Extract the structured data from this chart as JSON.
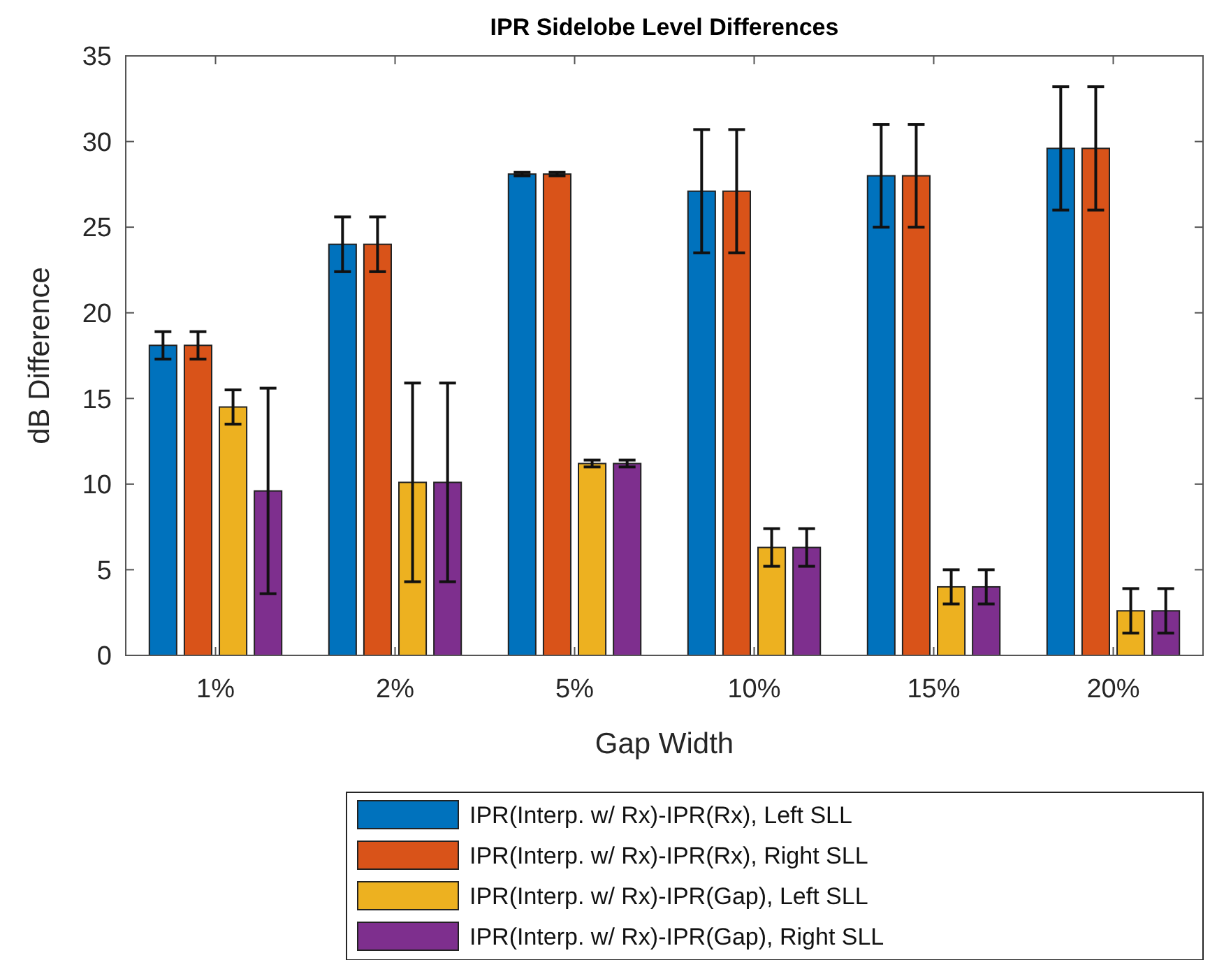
{
  "chart_data": {
    "type": "bar",
    "title": "IPR Sidelobe Level Differences",
    "xlabel": "Gap Width",
    "ylabel": "dB Difference",
    "categories": [
      "1%",
      "2%",
      "5%",
      "10%",
      "15%",
      "20%"
    ],
    "series": [
      {
        "name": "IPR(Interp. w/ Rx)-IPR(Rx), Left SLL",
        "color": "#0072bd",
        "values": [
          18.1,
          24.0,
          28.1,
          27.1,
          28.0,
          29.6
        ],
        "errors": [
          0.8,
          1.6,
          0.1,
          3.6,
          3.0,
          3.6
        ]
      },
      {
        "name": "IPR(Interp. w/ Rx)-IPR(Rx), Right SLL",
        "color": "#d95319",
        "values": [
          18.1,
          24.0,
          28.1,
          27.1,
          28.0,
          29.6
        ],
        "errors": [
          0.8,
          1.6,
          0.1,
          3.6,
          3.0,
          3.6
        ]
      },
      {
        "name": "IPR(Interp. w/ Rx)-IPR(Gap), Left SLL",
        "color": "#edb120",
        "values": [
          14.5,
          10.1,
          11.2,
          6.3,
          4.0,
          2.6
        ],
        "errors": [
          1.0,
          5.8,
          0.2,
          1.1,
          1.0,
          1.3
        ]
      },
      {
        "name": "IPR(Interp. w/ Rx)-IPR(Gap), Right SLL",
        "color": "#7e2f8e",
        "values": [
          9.6,
          10.1,
          11.2,
          6.3,
          4.0,
          2.6
        ],
        "errors": [
          6.0,
          5.8,
          0.2,
          1.1,
          1.0,
          1.3
        ]
      }
    ],
    "ylim": [
      0,
      35
    ],
    "yticks": [
      0,
      5,
      10,
      15,
      20,
      25,
      30,
      35
    ],
    "grid": false,
    "legend": "bottom"
  }
}
